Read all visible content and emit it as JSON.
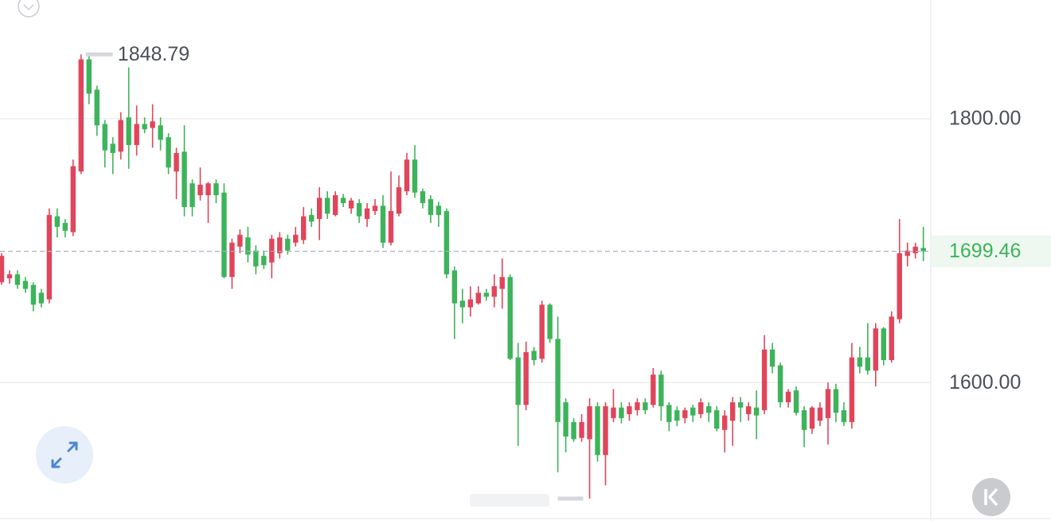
{
  "chart_data": {
    "type": "candlestick",
    "open": [
      1676,
      1679,
      1682,
      1677,
      1674,
      1668,
      1663,
      1726,
      1721,
      1714,
      1760,
      1845,
      1822,
      1796,
      1781,
      1775,
      1801,
      1780,
      1796,
      1793,
      1795,
      1786,
      1760,
      1775,
      1751,
      1742,
      1742,
      1751,
      1744,
      1680,
      1703,
      1710,
      1700,
      1696,
      1691,
      1698,
      1709,
      1706,
      1708,
      1727,
      1724,
      1740,
      1727,
      1740,
      1732,
      1736,
      1724,
      1730,
      1734,
      1706,
      1728,
      1745,
      1769,
      1745,
      1739,
      1734,
      1730,
      1685,
      1662,
      1657,
      1660,
      1668,
      1665,
      1671,
      1680,
      1619,
      1583,
      1624,
      1618,
      1659,
      1633,
      1585,
      1570,
      1558,
      1557,
      1582,
      1545,
      1573,
      1581,
      1576,
      1579,
      1585,
      1583,
      1606,
      1583,
      1579,
      1573,
      1581,
      1576,
      1582,
      1579,
      1564,
      1571,
      1585,
      1576,
      1581,
      1579,
      1625,
      1613,
      1585,
      1594,
      1579,
      1565,
      1571,
      1573,
      1595,
      1579,
      1570,
      1619,
      1619,
      1609,
      1641,
      1617,
      1648,
      1696,
      1698,
      1702
    ],
    "high": [
      1698,
      1685,
      1685,
      1680,
      1676,
      1671,
      1732,
      1732,
      1724,
      1769,
      1848.79,
      1848,
      1825,
      1799,
      1786,
      1805,
      1839,
      1810,
      1801,
      1811,
      1801,
      1789,
      1778,
      1795,
      1754,
      1763,
      1752,
      1754,
      1751,
      1709,
      1716,
      1718,
      1704,
      1700,
      1712,
      1714,
      1712,
      1718,
      1733,
      1732,
      1748,
      1745,
      1745,
      1743,
      1740,
      1739,
      1736,
      1739,
      1742,
      1760,
      1757,
      1774,
      1780,
      1747,
      1742,
      1737,
      1732,
      1688,
      1671,
      1673,
      1673,
      1671,
      1682,
      1694,
      1682,
      1630,
      1631,
      1627,
      1662,
      1660,
      1650,
      1588,
      1573,
      1576,
      1588,
      1585,
      1585,
      1595,
      1585,
      1585,
      1588,
      1588,
      1611,
      1609,
      1585,
      1582,
      1581,
      1583,
      1588,
      1585,
      1582,
      1579,
      1589,
      1589,
      1585,
      1594,
      1636,
      1630,
      1615,
      1595,
      1597,
      1582,
      1582,
      1585,
      1600,
      1599,
      1585,
      1630,
      1627,
      1645,
      1645,
      1642,
      1654,
      1724,
      1706,
      1706,
      1718
    ],
    "low": [
      1674,
      1675,
      1671,
      1668,
      1654,
      1657,
      1660,
      1710,
      1710,
      1711,
      1758,
      1811,
      1787,
      1763,
      1758,
      1769,
      1762,
      1772,
      1789,
      1778,
      1776,
      1758,
      1739,
      1726,
      1726,
      1738,
      1721,
      1736,
      1679,
      1671,
      1698,
      1691,
      1682,
      1686,
      1679,
      1694,
      1697,
      1703,
      1705,
      1718,
      1708,
      1724,
      1726,
      1733,
      1728,
      1721,
      1718,
      1727,
      1702,
      1704,
      1726,
      1742,
      1740,
      1732,
      1721,
      1718,
      1679,
      1633,
      1645,
      1650,
      1659,
      1662,
      1657,
      1656,
      1617,
      1552,
      1579,
      1613,
      1615,
      1630,
      1532,
      1547,
      1555,
      1555,
      1512,
      1540,
      1522,
      1570,
      1569,
      1571,
      1575,
      1576,
      1581,
      1571,
      1563,
      1567,
      1569,
      1570,
      1573,
      1570,
      1563,
      1547,
      1552,
      1570,
      1571,
      1557,
      1576,
      1607,
      1581,
      1581,
      1575,
      1551,
      1561,
      1567,
      1553,
      1570,
      1567,
      1565,
      1607,
      1606,
      1597,
      1613,
      1615,
      1645,
      1688,
      1694,
      1692
    ],
    "close": [
      1696,
      1682,
      1674,
      1671,
      1659,
      1660,
      1727,
      1718,
      1715,
      1764,
      1845,
      1819,
      1795,
      1776,
      1774,
      1799,
      1780,
      1796,
      1792,
      1798,
      1784,
      1763,
      1774,
      1733,
      1733,
      1750,
      1751,
      1742,
      1680,
      1706,
      1712,
      1697,
      1688,
      1689,
      1709,
      1710,
      1700,
      1712,
      1726,
      1722,
      1740,
      1728,
      1742,
      1736,
      1738,
      1726,
      1732,
      1734,
      1706,
      1730,
      1748,
      1769,
      1744,
      1736,
      1727,
      1727,
      1682,
      1660,
      1657,
      1663,
      1668,
      1665,
      1673,
      1680,
      1618,
      1583,
      1623,
      1617,
      1659,
      1633,
      1570,
      1559,
      1557,
      1570,
      1582,
      1545,
      1582,
      1581,
      1573,
      1582,
      1585,
      1579,
      1606,
      1582,
      1570,
      1571,
      1579,
      1575,
      1585,
      1577,
      1565,
      1575,
      1585,
      1581,
      1582,
      1575,
      1625,
      1612,
      1585,
      1593,
      1577,
      1564,
      1581,
      1581,
      1595,
      1577,
      1570,
      1619,
      1612,
      1609,
      1641,
      1617,
      1650,
      1698,
      1700,
      1703,
      1699.46
    ],
    "up_color": "#e0455b",
    "down_color": "#3db35a",
    "ylim": [
      1495,
      1890
    ],
    "yticks": [
      {
        "value": 1800,
        "label": "1800.00"
      },
      {
        "value": 1600,
        "label": "1600.00"
      }
    ],
    "grid": true
  }
}
